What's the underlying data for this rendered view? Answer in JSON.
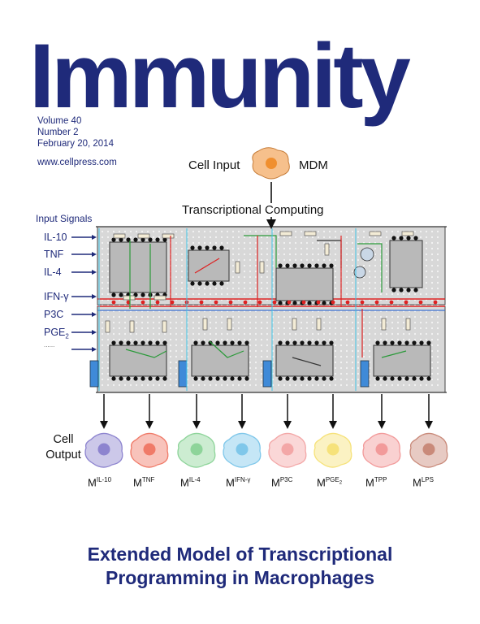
{
  "journal": {
    "title": "Immunity"
  },
  "issue": {
    "volume": "Volume 40",
    "number": "Number 2",
    "date": "February 20, 2014",
    "website": "www.cellpress.com"
  },
  "figure": {
    "cell_input_label": "Cell Input",
    "input_cell_label": "MDM",
    "transcriptional_label": "Transcriptional Computing",
    "input_signals_title": "Input Signals",
    "input_signals": [
      "IL-10",
      "TNF",
      "IL-4",
      "IFN-γ",
      "P3C",
      "PGE2",
      "......"
    ],
    "cell_output_label": "Cell Output",
    "outputs": [
      {
        "base": "M",
        "sup": "IL-10",
        "color": "#8d84cf"
      },
      {
        "base": "M",
        "sup": "TNF",
        "color": "#f07a68"
      },
      {
        "base": "M",
        "sup": "IL-4",
        "color": "#8ed49a"
      },
      {
        "base": "M",
        "sup": "IFN-γ",
        "color": "#7fc7ea"
      },
      {
        "base": "M",
        "sup": "P3C",
        "color": "#f3a7a7"
      },
      {
        "base": "M",
        "sup": "PGE2",
        "color": "#f6e27a"
      },
      {
        "base": "M",
        "sup": "TPP",
        "color": "#f29a9a"
      },
      {
        "base": "M",
        "sup": "LPS",
        "color": "#c98a7a"
      }
    ],
    "input_cell_color": "#f5a25a"
  },
  "headline": {
    "line1": "Extended Model of Transcriptional",
    "line2": "Programming in Macrophages"
  }
}
